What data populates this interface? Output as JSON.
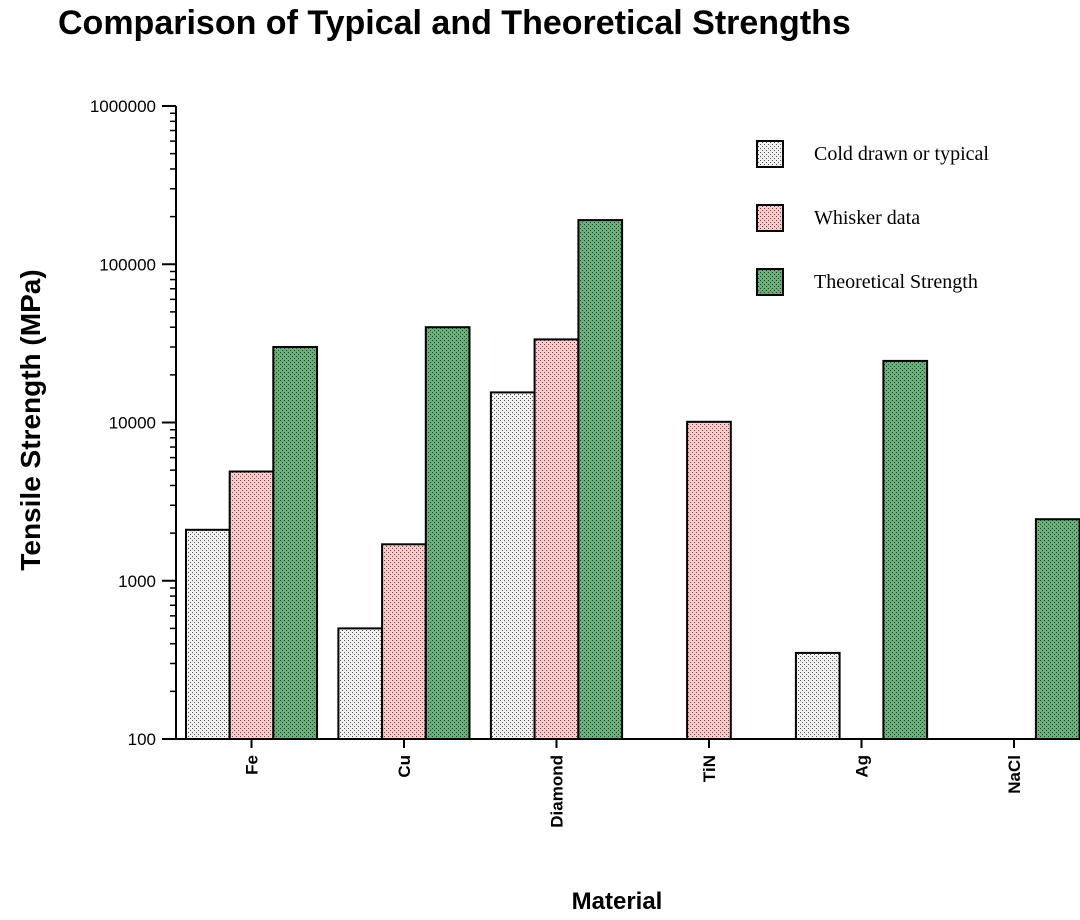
{
  "chart_data": {
    "type": "bar",
    "title": "Comparison of Typical and Theoretical Strengths",
    "xlabel": "Material",
    "ylabel": "Tensile Strength (MPa)",
    "yscale": "log",
    "ylim": [
      100,
      1000000
    ],
    "yticks": [
      100,
      1000,
      10000,
      100000,
      1000000
    ],
    "ytick_labels": [
      "100",
      "1000",
      "10000",
      "100000",
      "1000000"
    ],
    "categories": [
      "Fe",
      "Cu",
      "Diamond",
      "TiN",
      "Ag",
      "NaCl"
    ],
    "series": [
      {
        "name": "Cold drawn or typical",
        "color": "#e8e8e8",
        "values": [
          2100,
          500,
          15500,
          null,
          350,
          null
        ]
      },
      {
        "name": "Whisker data",
        "color": "#f0c4c4",
        "values": [
          4900,
          1700,
          33500,
          10100,
          null,
          null
        ]
      },
      {
        "name": "Theoretical Strength",
        "color": "#5a9a6a",
        "values": [
          30000,
          40000,
          190000,
          null,
          24500,
          2450
        ]
      }
    ],
    "legend_position": "top-right",
    "grid": false
  }
}
